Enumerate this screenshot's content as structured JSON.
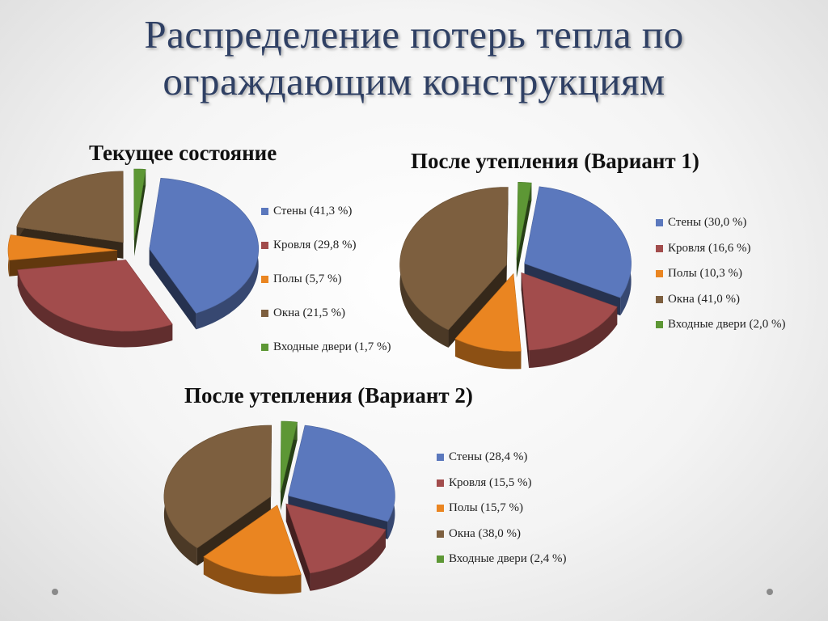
{
  "slide": {
    "title_line1": "Распределение потерь тепла по",
    "title_line2": "ограждающим конструкциям"
  },
  "colors": {
    "walls": "#5b78bd",
    "roof": "#a24c4c",
    "floors": "#ea8521",
    "windows": "#7d5f3f",
    "doors": "#5d9735"
  },
  "chart_data": [
    {
      "type": "pie",
      "title": "Текущее состояние",
      "categories": [
        "Стены",
        "Кровля",
        "Полы",
        "Окна",
        "Входные двери"
      ],
      "values": [
        41.3,
        29.8,
        5.7,
        21.5,
        1.7
      ],
      "legend_labels": [
        "Стены (41,3 %)",
        "Кровля (29,8 %)",
        "Полы (5,7 %)",
        "Окна (21,5 %)",
        "Входные двери (1,7 %)"
      ],
      "legend_position": "right"
    },
    {
      "type": "pie",
      "title": "После утепления (Вариант 1)",
      "categories": [
        "Стены",
        "Кровля",
        "Полы",
        "Окна",
        "Входные двери"
      ],
      "values": [
        30.0,
        16.6,
        10.3,
        41.0,
        2.0
      ],
      "legend_labels": [
        "Стены (30,0 %)",
        "Кровля (16,6 %)",
        "Полы (10,3 %)",
        "Окна (41,0 %)",
        "Входные двери (2,0 %)"
      ],
      "legend_position": "right"
    },
    {
      "type": "pie",
      "title": "После утепления (Вариант 2)",
      "categories": [
        "Стены",
        "Кровля",
        "Полы",
        "Окна",
        "Входные двери"
      ],
      "values": [
        28.4,
        15.5,
        15.7,
        38.0,
        2.4
      ],
      "legend_labels": [
        "Стены (28,4 %)",
        "Кровля (15,5 %)",
        "Полы (15,7 %)",
        "Окна (38,0 %)",
        "Входные двери (2,4 %)"
      ],
      "legend_position": "right"
    }
  ]
}
